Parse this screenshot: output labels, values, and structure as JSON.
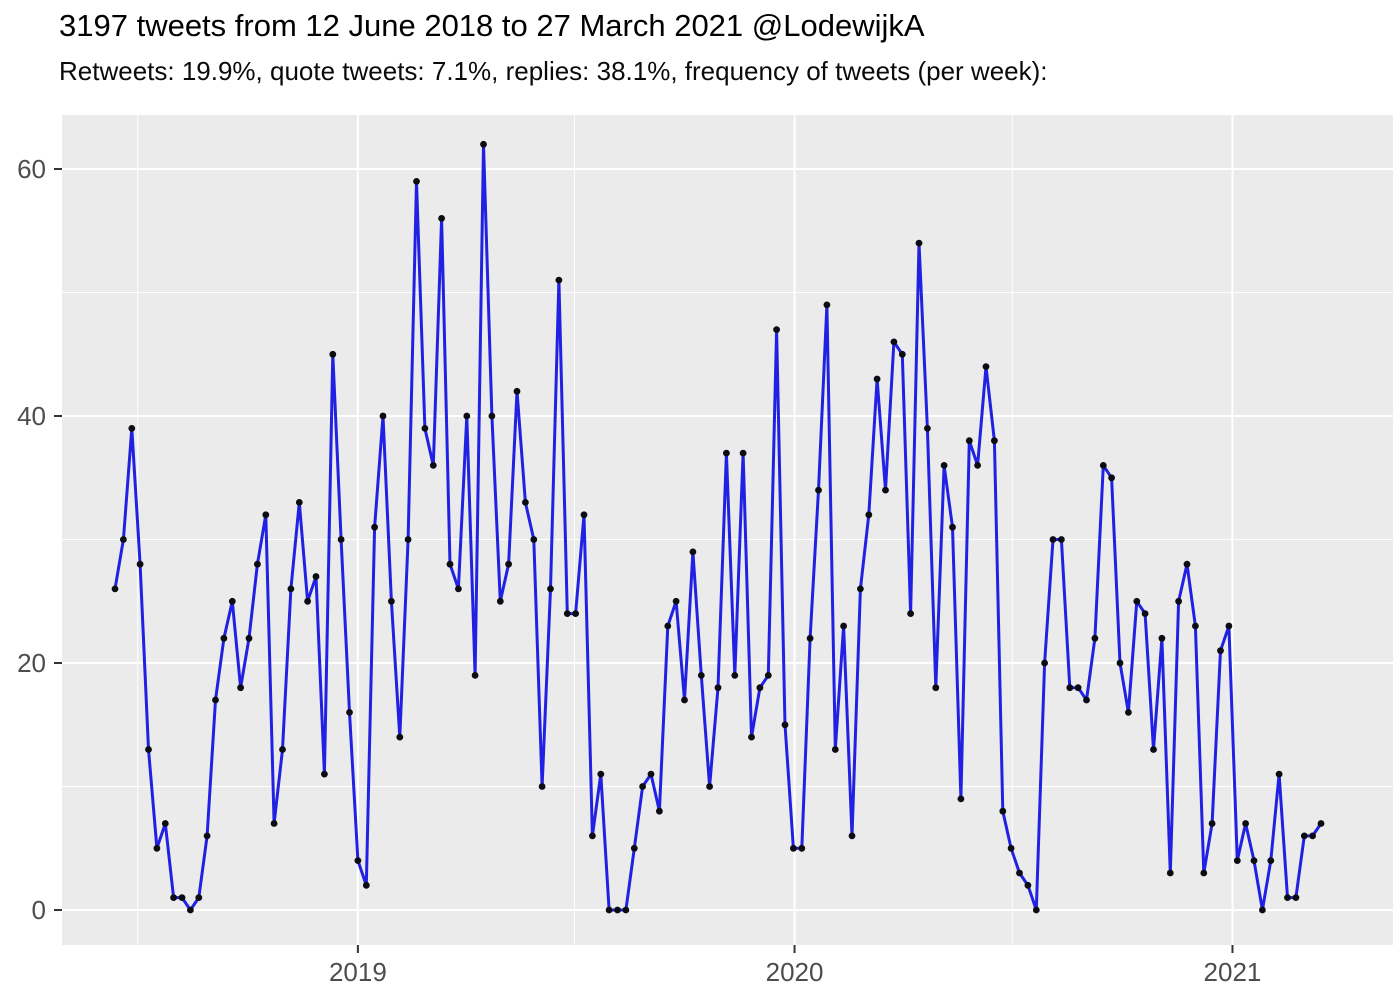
{
  "header": {
    "title": "3197 tweets from 12 June 2018 to 27 March 2021 @LodewijkA",
    "subtitle": "Retweets: 19.9%, quote tweets: 7.1%, replies: 38.1%, frequency of tweets (per week):"
  },
  "chart_data": {
    "type": "line",
    "title": "3197 tweets from 12 June 2018 to 27 March 2021 @LodewijkA",
    "subtitle": "Retweets: 19.9%, quote tweets: 7.1%, replies: 38.1%, frequency of tweets (per week):",
    "x_unit": "week",
    "x_start_label": "12 June 2018",
    "x_end_label": "27 March 2021",
    "x_tick_labels": [
      "2019",
      "2020",
      "2021"
    ],
    "x_tick_weeks": [
      29.0,
      81.14,
      133.43
    ],
    "x_minor_weeks": [
      2.71,
      54.86,
      107.14
    ],
    "y_ticks": [
      0,
      20,
      40,
      60
    ],
    "y_minor_ticks": [
      10,
      30,
      50
    ],
    "ylim": [
      -2.8,
      64.4
    ],
    "grid": "on",
    "legend": "none",
    "series": [
      {
        "name": "tweets per week",
        "values": [
          26,
          30,
          39,
          28,
          13,
          5,
          7,
          1,
          1,
          0,
          1,
          6,
          17,
          22,
          25,
          18,
          22,
          28,
          32,
          7,
          13,
          26,
          33,
          25,
          27,
          11,
          45,
          30,
          16,
          4,
          2,
          31,
          40,
          25,
          14,
          30,
          59,
          39,
          36,
          56,
          28,
          26,
          40,
          19,
          62,
          40,
          25,
          28,
          42,
          33,
          30,
          10,
          26,
          51,
          24,
          24,
          32,
          6,
          11,
          0,
          0,
          0,
          5,
          10,
          11,
          8,
          23,
          25,
          17,
          29,
          19,
          10,
          18,
          37,
          19,
          37,
          14,
          18,
          19,
          47,
          15,
          5,
          5,
          22,
          34,
          49,
          13,
          23,
          6,
          26,
          32,
          43,
          34,
          46,
          45,
          24,
          54,
          39,
          18,
          36,
          31,
          9,
          38,
          36,
          44,
          38,
          8,
          5,
          3,
          2,
          0,
          20,
          30,
          30,
          18,
          18,
          17,
          22,
          36,
          35,
          20,
          16,
          25,
          24,
          13,
          22,
          3,
          25,
          28,
          23,
          3,
          7,
          21,
          23,
          4,
          7,
          4,
          0,
          4,
          11,
          1,
          1,
          6,
          6,
          7
        ]
      }
    ],
    "colors": {
      "line": "#2121E4",
      "point": "#0c0c14",
      "panel_bg": "#EBEBEB",
      "grid": "#FFFFFF",
      "axis_text": "#4D4D4D",
      "tick_mark": "#333333",
      "figure_bg": "#FFFFFF"
    }
  }
}
